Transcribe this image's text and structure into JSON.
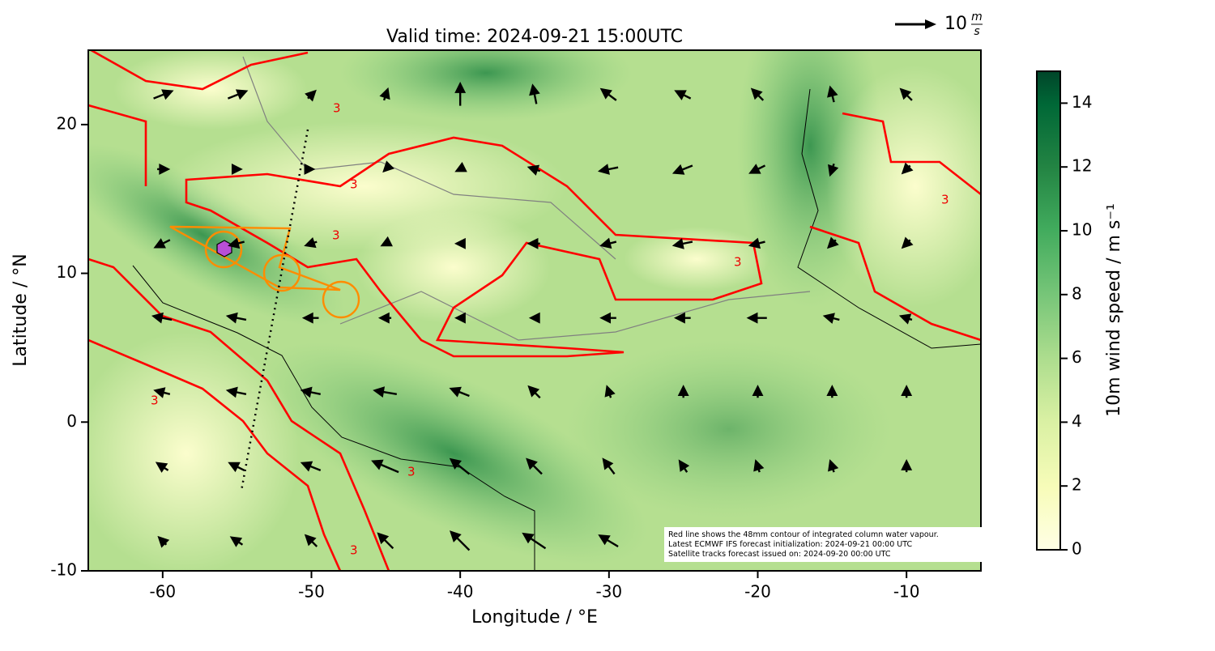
{
  "chart_data": {
    "type": "quiver",
    "title": "Valid time: 2024-09-21 15:00UTC",
    "x_label": "Longitude / °E",
    "y_label": "Latitude / °N",
    "xlim": [
      -65,
      -5
    ],
    "ylim": [
      -10,
      25
    ],
    "xticks": [
      -60,
      -50,
      -40,
      -30,
      -20,
      -10
    ],
    "yticks": [
      -10,
      0,
      10,
      20
    ],
    "colorbar": {
      "label": "10m wind speed / m s⁻¹",
      "lim": [
        0,
        15
      ],
      "ticks": [
        0,
        2,
        4,
        6,
        8,
        10,
        12,
        14
      ]
    },
    "quiver_key": {
      "value": 10,
      "unit_top": "m",
      "unit_bottom": "s"
    },
    "contour_label": "3",
    "notes": [
      "Red line shows the 48mm contour of integrated column water vapour.",
      "Latest ECMWF IFS forecast initialization: 2024-09-21 00:00 UTC",
      "Satellite tracks forecast issued on: 2024-09-20 00:00 UTC"
    ],
    "wind": {
      "lon": [
        -60,
        -55,
        -50,
        -45,
        -40,
        -35,
        -30,
        -25,
        -20,
        -15,
        -10
      ],
      "lat": [
        22,
        17,
        12,
        7,
        2,
        -3,
        -8
      ],
      "u": [
        [
          5,
          5,
          2,
          1,
          0,
          -1,
          -4,
          -4,
          -3,
          -1,
          -3
        ],
        [
          3,
          2,
          1,
          -1,
          -2,
          -3,
          -5,
          -5,
          -4,
          -1,
          -2
        ],
        [
          -4,
          -4,
          -3,
          -2,
          -2,
          -3,
          -4,
          -5,
          -4,
          -2,
          -2
        ],
        [
          -5,
          -5,
          -4,
          -3,
          -2,
          -2,
          -4,
          -4,
          -5,
          -4,
          -3
        ],
        [
          -4,
          -5,
          -5,
          -6,
          -5,
          -3,
          -1,
          0,
          0,
          0,
          0
        ],
        [
          -3,
          -4,
          -5,
          -7,
          -5,
          -4,
          -3,
          -2,
          -1,
          -1,
          0
        ],
        [
          -2,
          -3,
          -3,
          -4,
          -5,
          -6,
          -5,
          -4,
          -3,
          -2,
          -1
        ]
      ],
      "v": [
        [
          2,
          2,
          2,
          3,
          6,
          5,
          3,
          2,
          3,
          4,
          3
        ],
        [
          0,
          0,
          0,
          -1,
          -1,
          1,
          -1,
          -2,
          -2,
          -3,
          -2
        ],
        [
          -2,
          -1,
          -1,
          -1,
          0,
          0,
          -1,
          -1,
          -1,
          -2,
          -2
        ],
        [
          1,
          1,
          0,
          0,
          0,
          0,
          0,
          0,
          0,
          1,
          1
        ],
        [
          1,
          1,
          1,
          1,
          2,
          3,
          3,
          3,
          3,
          3,
          3
        ],
        [
          2,
          2,
          2,
          3,
          4,
          4,
          4,
          3,
          3,
          3,
          3
        ],
        [
          2,
          2,
          3,
          4,
          5,
          4,
          3,
          2,
          2,
          2,
          2
        ]
      ]
    }
  }
}
